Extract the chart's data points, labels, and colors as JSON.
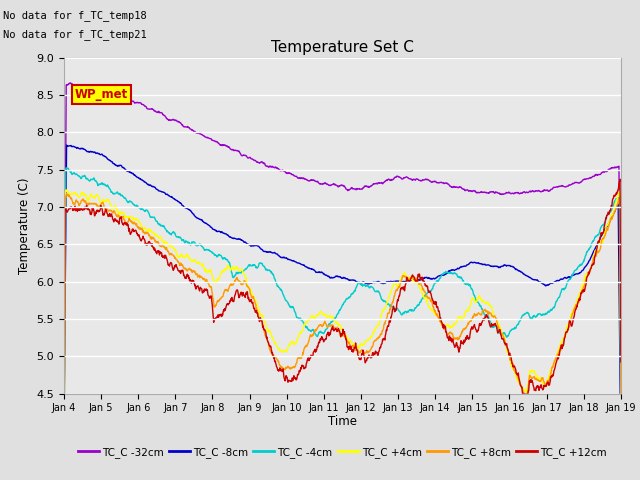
{
  "title": "Temperature Set C",
  "ylabel": "Temperature (C)",
  "xlabel": "Time",
  "ylim": [
    4.5,
    9.0
  ],
  "yticks": [
    4.5,
    5.0,
    5.5,
    6.0,
    6.5,
    7.0,
    7.5,
    8.0,
    8.5,
    9.0
  ],
  "background_color": "#e0e0e0",
  "plot_bg_color": "#e8e8e8",
  "annotations": [
    "No data for f_TC_temp18",
    "No data for f_TC_temp21"
  ],
  "legend_box_label": "WP_met",
  "legend_box_color": "#ffff00",
  "legend_box_border": "#cc0000",
  "legend_box_text": "#cc0000",
  "series": [
    {
      "label": "TC_C -32cm",
      "color": "#9900cc"
    },
    {
      "label": "TC_C -8cm",
      "color": "#0000cc"
    },
    {
      "label": "TC_C -4cm",
      "color": "#00cccc"
    },
    {
      "label": "TC_C +4cm",
      "color": "#ffff00"
    },
    {
      "label": "TC_C +8cm",
      "color": "#ff9900"
    },
    {
      "label": "TC_C +12cm",
      "color": "#cc0000"
    }
  ],
  "xtick_labels": [
    "Jan 4",
    "Jan 5",
    "Jan 6",
    "Jan 7",
    "Jan 8",
    "Jan 9",
    "Jan 10",
    "Jan 11",
    "Jan 12",
    "Jan 13",
    "Jan 14",
    "Jan 15",
    "Jan 16",
    "Jan 17",
    "Jan 18",
    "Jan 19"
  ],
  "n_points": 1500
}
